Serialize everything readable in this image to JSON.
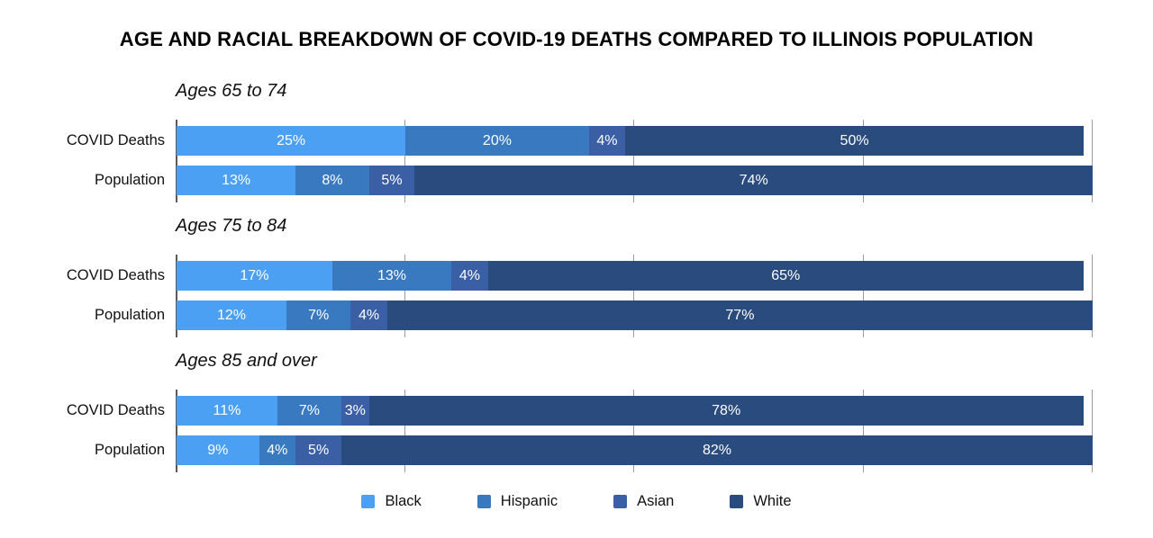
{
  "title": "AGE AND RACIAL BREAKDOWN OF COVID-19 DEATHS COMPARED TO ILLINOIS POPULATION",
  "legend": [
    {
      "label": "Black",
      "color": "#4BA0F4"
    },
    {
      "label": "Hispanic",
      "color": "#3879BF"
    },
    {
      "label": "Asian",
      "color": "#3A5FA5"
    },
    {
      "label": "White",
      "color": "#294B7D"
    }
  ],
  "chart_data": {
    "type": "bar",
    "orientation": "horizontal",
    "stacked": true,
    "unit": "%",
    "title": "AGE AND RACIAL BREAKDOWN OF COVID-19 DEATHS COMPARED TO ILLINOIS POPULATION",
    "series_labels": [
      "Black",
      "Hispanic",
      "Asian",
      "White"
    ],
    "series_colors": [
      "#4BA0F4",
      "#3879BF",
      "#3A5FA5",
      "#294B7D"
    ],
    "axis": {
      "min": 0,
      "max": 100,
      "ticks": [
        25,
        50,
        75,
        100
      ],
      "tick_labels_visible": false,
      "grid": "ticks-only"
    },
    "legend_position": "bottom",
    "groups": [
      {
        "title": "Ages 65 to 74",
        "rows": [
          {
            "label": "COVID Deaths",
            "values": [
              25,
              20,
              4,
              50
            ]
          },
          {
            "label": "Population",
            "values": [
              13,
              8,
              5,
              74
            ]
          }
        ]
      },
      {
        "title": "Ages 75 to 84",
        "rows": [
          {
            "label": "COVID Deaths",
            "values": [
              17,
              13,
              4,
              65
            ]
          },
          {
            "label": "Population",
            "values": [
              12,
              7,
              4,
              77
            ]
          }
        ]
      },
      {
        "title": "Ages 85 and over",
        "rows": [
          {
            "label": "COVID Deaths",
            "values": [
              11,
              7,
              3,
              78
            ]
          },
          {
            "label": "Population",
            "values": [
              9,
              4,
              5,
              82
            ]
          }
        ]
      }
    ]
  }
}
